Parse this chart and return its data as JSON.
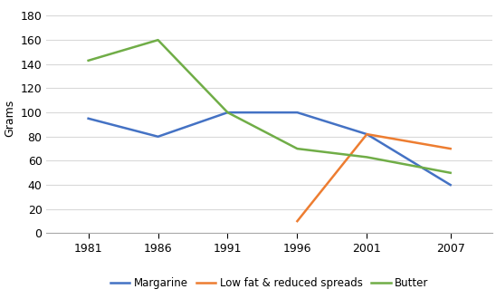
{
  "years": [
    1981,
    1986,
    1991,
    1996,
    2001,
    2007
  ],
  "margarine": [
    95,
    80,
    100,
    100,
    82,
    40
  ],
  "low_fat_years": [
    1996,
    2001,
    2007
  ],
  "low_fat": [
    10,
    82,
    70
  ],
  "butter": [
    143,
    160,
    100,
    70,
    63,
    50
  ],
  "ylabel": "Grams",
  "ylim": [
    0,
    190
  ],
  "yticks": [
    0,
    20,
    40,
    60,
    80,
    100,
    120,
    140,
    160,
    180
  ],
  "xticks": [
    1981,
    1986,
    1991,
    1996,
    2001,
    2007
  ],
  "margarine_color": "#4472C4",
  "low_fat_color": "#ED7D31",
  "butter_color": "#70AD47",
  "legend_labels": [
    "Margarine",
    "Low fat & reduced spreads",
    "Butter"
  ],
  "line_width": 1.8,
  "grid_color": "#D9D9D9",
  "background_color": "#FFFFFF",
  "xlim_left": 1978,
  "xlim_right": 2010
}
